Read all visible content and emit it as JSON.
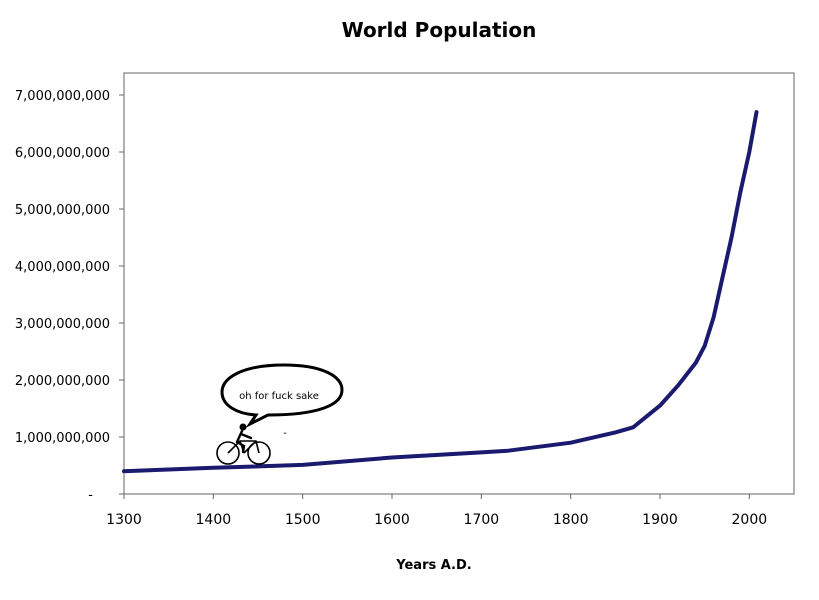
{
  "chart_data": {
    "type": "line",
    "title": "World Population",
    "xlabel": "Years A.D.",
    "ylabel": "",
    "xlim": [
      1300,
      2050
    ],
    "ylim": [
      0,
      7000000000
    ],
    "x_ticks": [
      "1300",
      "1400",
      "1500",
      "1600",
      "1700",
      "1800",
      "1900",
      "2000"
    ],
    "y_ticks": [
      "-",
      "1,000,000,000",
      "2,000,000,000",
      "3,000,000,000",
      "4,000,000,000",
      "5,000,000,000",
      "6,000,000,000",
      "7,000,000,000"
    ],
    "grid": false,
    "legend": "none",
    "line_color": "#1a1a6e",
    "series": [
      {
        "x": [
          1300,
          1400,
          1500,
          1600,
          1700,
          1730,
          1800,
          1850,
          1870,
          1900,
          1920,
          1940,
          1950,
          1960,
          1970,
          1980,
          1990,
          2000,
          2008
        ],
        "values": [
          400000000,
          460000000,
          510000000,
          640000000,
          730000000,
          760000000,
          900000000,
          1080000000,
          1170000000,
          1550000000,
          1900000000,
          2300000000,
          2600000000,
          3100000000,
          3800000000,
          4500000000,
          5300000000,
          6000000000,
          6700000000
        ]
      }
    ],
    "annotations": {
      "speech_bubble": "oh for fuck sake",
      "small_mark": "-"
    }
  }
}
